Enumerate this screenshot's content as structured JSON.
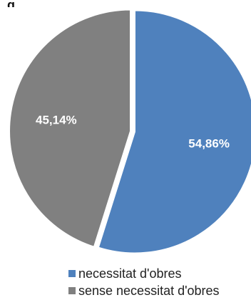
{
  "partial_title": "g",
  "chart_data": {
    "type": "pie",
    "title": "",
    "slices": [
      {
        "label": "necessitat d'obres",
        "value": 54.86,
        "display": "54,86%",
        "color": "#4f81bd"
      },
      {
        "label": "sense necessitat d'obres",
        "value": 45.14,
        "display": "45,14%",
        "color": "#808080"
      }
    ],
    "start_angle_deg": 0,
    "direction": "clockwise",
    "legend_position": "bottom",
    "label_color": "#ffffff"
  }
}
